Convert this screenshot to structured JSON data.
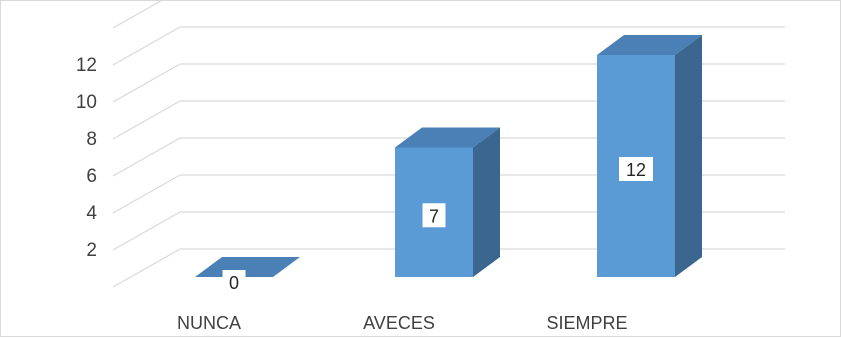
{
  "chart_data": {
    "type": "bar",
    "style": "3d-column",
    "categories": [
      "NUNCA",
      "AVECES",
      "SIEMPRE"
    ],
    "values": [
      0,
      7,
      12
    ],
    "data_labels": [
      "0",
      "7",
      "12"
    ],
    "y_ticks": [
      2,
      4,
      6,
      8,
      10,
      12
    ],
    "y_tick_labels": [
      "2",
      "4",
      "6",
      "8",
      "10",
      "12"
    ],
    "ylim": [
      0,
      14
    ],
    "grid": true,
    "legend": "none",
    "title": "",
    "xlabel": "",
    "ylabel": "",
    "colors": {
      "front": "#5b9bd5",
      "side": "#3a6690",
      "top": "#4a80b5",
      "grid": "#d9d9d9",
      "label_bg": "#ffffff"
    }
  }
}
